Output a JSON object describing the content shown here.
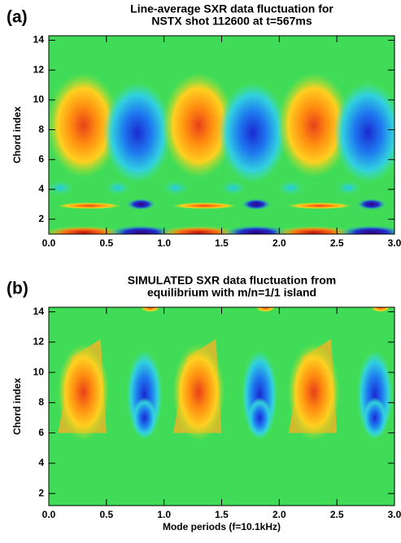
{
  "chart_data": [
    {
      "type": "contour",
      "panel_label": "(a)",
      "title_lines": [
        "Line-average SXR data fluctuation for",
        "NSTX shot 112600 at t=567ms"
      ],
      "ylabel": "Chord index",
      "xlim": [
        0,
        3
      ],
      "ylim": [
        1,
        14.3
      ],
      "xticks": [
        {
          "value": 0,
          "label": "0.0"
        },
        {
          "value": 0.5,
          "label": "0.5"
        },
        {
          "value": 1,
          "label": "1.0"
        },
        {
          "value": 1.5,
          "label": "1.5"
        },
        {
          "value": 2,
          "label": "2.0"
        },
        {
          "value": 2.5,
          "label": "2.5"
        },
        {
          "value": 3,
          "label": "3.0"
        }
      ],
      "yticks": [
        2,
        4,
        6,
        8,
        10,
        12,
        14
      ]
    },
    {
      "type": "contour",
      "panel_label": "(b)",
      "title_lines": [
        "SIMULATED SXR data fluctuation from",
        "equilibrium with m/n=1/1 island"
      ],
      "ylabel": "Chord index",
      "xlabel": "Mode periods  (f=10.1kHz)",
      "xlim": [
        0,
        3
      ],
      "ylim": [
        1.2,
        14.3
      ],
      "xticks": [
        {
          "value": 0,
          "label": "0.0"
        },
        {
          "value": 0.5,
          "label": "0.5"
        },
        {
          "value": 1,
          "label": "1.0"
        },
        {
          "value": 1.5,
          "label": "1.5"
        },
        {
          "value": 2,
          "label": "2.0"
        },
        {
          "value": 2.5,
          "label": "2.5"
        },
        {
          "value": 3,
          "label": "3.0"
        }
      ],
      "yticks": [
        2,
        4,
        6,
        8,
        10,
        12,
        14
      ]
    }
  ]
}
